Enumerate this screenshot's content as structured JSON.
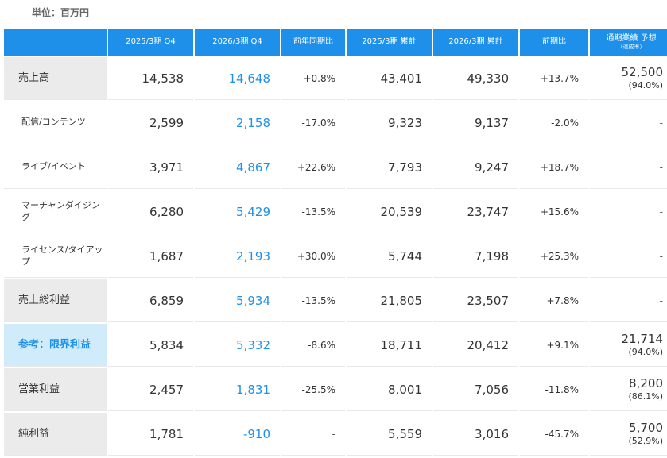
{
  "unit": "単位：百万円",
  "headers": {
    "label": "",
    "q4_prev": "2025/3期 Q4",
    "q4_cur": "2026/3期 Q4",
    "yoy": "前年同期比",
    "cum_prev": "2025/3期 累計",
    "cum_cur": "2026/3期 累計",
    "cum_yoy": "前期比",
    "forecast": "通期業績 予想",
    "forecast_sub": "（達成率）"
  },
  "rows": [
    {
      "label": "売上高",
      "q4_prev": "14,538",
      "q4_cur": "14,648",
      "yoy": "+0.8%",
      "cum_prev": "43,401",
      "cum_cur": "49,330",
      "cum_yoy": "+13.7%",
      "forecast": "52,500",
      "forecast_rate": "(94.0%)"
    },
    {
      "label": "配信/コンテンツ",
      "q4_prev": "2,599",
      "q4_cur": "2,158",
      "yoy": "-17.0%",
      "cum_prev": "9,323",
      "cum_cur": "9,137",
      "cum_yoy": "-2.0%",
      "forecast": "-",
      "forecast_rate": ""
    },
    {
      "label": "ライブ/イベント",
      "q4_prev": "3,971",
      "q4_cur": "4,867",
      "yoy": "+22.6%",
      "cum_prev": "7,793",
      "cum_cur": "9,247",
      "cum_yoy": "+18.7%",
      "forecast": "-",
      "forecast_rate": ""
    },
    {
      "label": "マーチャンダイジング",
      "q4_prev": "6,280",
      "q4_cur": "5,429",
      "yoy": "-13.5%",
      "cum_prev": "20,539",
      "cum_cur": "23,747",
      "cum_yoy": "+15.6%",
      "forecast": "-",
      "forecast_rate": ""
    },
    {
      "label": "ライセンス/タイアップ",
      "q4_prev": "1,687",
      "q4_cur": "2,193",
      "yoy": "+30.0%",
      "cum_prev": "5,744",
      "cum_cur": "7,198",
      "cum_yoy": "+25.3%",
      "forecast": "-",
      "forecast_rate": ""
    },
    {
      "label": "売上総利益",
      "q4_prev": "6,859",
      "q4_cur": "5,934",
      "yoy": "-13.5%",
      "cum_prev": "21,805",
      "cum_cur": "23,507",
      "cum_yoy": "+7.8%",
      "forecast": "-",
      "forecast_rate": ""
    },
    {
      "label": "参考：限界利益",
      "q4_prev": "5,834",
      "q4_cur": "5,332",
      "yoy": "-8.6%",
      "cum_prev": "18,711",
      "cum_cur": "20,412",
      "cum_yoy": "+9.1%",
      "forecast": "21,714",
      "forecast_rate": "(94.0%)"
    },
    {
      "label": "営業利益",
      "q4_prev": "2,457",
      "q4_cur": "1,831",
      "yoy": "-25.5%",
      "cum_prev": "8,001",
      "cum_cur": "7,056",
      "cum_yoy": "-11.8%",
      "forecast": "8,200",
      "forecast_rate": "(86.1%)"
    },
    {
      "label": "純利益",
      "q4_prev": "1,781",
      "q4_cur": "-910",
      "yoy": "-",
      "cum_prev": "5,559",
      "cum_cur": "3,016",
      "cum_yoy": "-45.7%",
      "forecast": "5,700",
      "forecast_rate": "(52.9%)"
    }
  ],
  "colors": {
    "header_bg": "#1e90ea",
    "accent": "#1e90ea",
    "label_bg": "#ebebeb",
    "ref_label_bg": "#d0ecfb"
  }
}
